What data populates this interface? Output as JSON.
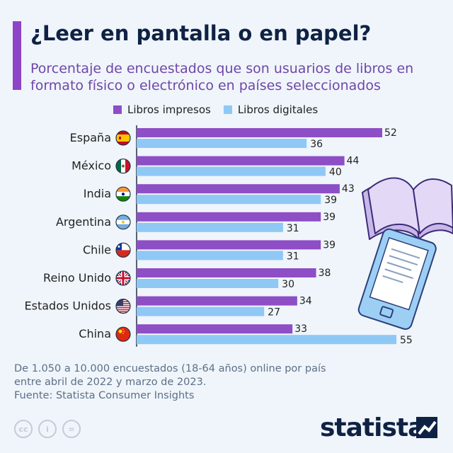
{
  "title": "¿Leer en pantalla o en papel?",
  "subtitle_lines": [
    "Porcentaje de encuestados que son usuarios de libros en",
    "formato físico o electrónico en países seleccionados"
  ],
  "colors": {
    "print": "#8e4ec6",
    "digital": "#8fc8f5",
    "accent": "#8d44c7",
    "title": "#0f2244"
  },
  "chart_data": {
    "type": "bar",
    "orientation": "horizontal",
    "categories": [
      "España",
      "México",
      "India",
      "Argentina",
      "Chile",
      "Reino Unido",
      "Estados Unidos",
      "China"
    ],
    "series": [
      {
        "name": "Libros impresos",
        "values": [
          52,
          44,
          43,
          39,
          39,
          38,
          34,
          33
        ]
      },
      {
        "name": "Libros digitales",
        "values": [
          36,
          40,
          39,
          31,
          31,
          30,
          27,
          55
        ]
      }
    ],
    "xlim": [
      0,
      55
    ],
    "legend_position": "top",
    "grid": false
  },
  "country_flags": [
    "spain-flag-icon",
    "mexico-flag-icon",
    "india-flag-icon",
    "argentina-flag-icon",
    "chile-flag-icon",
    "uk-flag-icon",
    "usa-flag-icon",
    "china-flag-icon"
  ],
  "footnote": {
    "lines": [
      "De 1.050 a 10.000 encuestados (18-64 años) online por país",
      "entre abril de 2022 y marzo de 2023.",
      "Fuente: Statista Consumer Insights"
    ]
  },
  "license_icons": {
    "cc": "cc",
    "by": "i",
    "nd": "="
  },
  "brand": "statista"
}
